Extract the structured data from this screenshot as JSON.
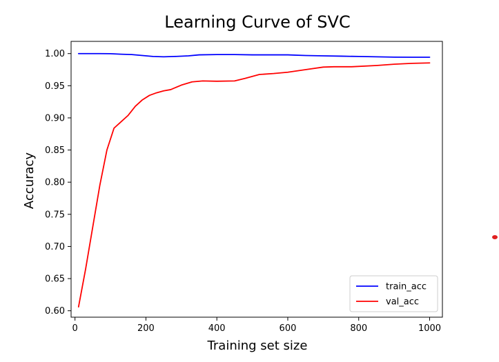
{
  "chart_data": {
    "type": "line",
    "title": "Learning Curve of SVC",
    "xlabel": "Training set size",
    "ylabel": "Accuracy",
    "xlim": [
      -11,
      1036
    ],
    "ylim": [
      0.59,
      1.019
    ],
    "xticks": [
      0,
      200,
      400,
      600,
      800,
      1000
    ],
    "xtick_labels": [
      "0",
      "200",
      "400",
      "600",
      "800",
      "1000"
    ],
    "yticks": [
      0.6,
      0.65,
      0.7,
      0.75,
      0.8,
      0.85,
      0.9,
      0.95,
      1.0
    ],
    "ytick_labels": [
      "0.60",
      "0.65",
      "0.70",
      "0.75",
      "0.80",
      "0.85",
      "0.90",
      "0.95",
      "1.00"
    ],
    "grid": false,
    "legend_position": "lower-right",
    "series": [
      {
        "name": "train_acc",
        "color": "#0000ff",
        "x": [
          10,
          50,
          70,
          100,
          130,
          160,
          190,
          220,
          250,
          280,
          320,
          350,
          400,
          450,
          500,
          550,
          600,
          650,
          700,
          750,
          800,
          850,
          900,
          950,
          1000
        ],
        "y": [
          1.0,
          1.0,
          1.0,
          0.9998,
          0.999,
          0.9985,
          0.997,
          0.9955,
          0.995,
          0.9955,
          0.9965,
          0.998,
          0.9985,
          0.9985,
          0.998,
          0.998,
          0.998,
          0.997,
          0.9965,
          0.996,
          0.9955,
          0.995,
          0.9945,
          0.9943,
          0.9943
        ]
      },
      {
        "name": "val_acc",
        "color": "#ff0000",
        "x": [
          10,
          30,
          50,
          70,
          90,
          110,
          130,
          150,
          170,
          190,
          210,
          230,
          250,
          270,
          300,
          330,
          360,
          400,
          450,
          480,
          520,
          560,
          600,
          650,
          700,
          730,
          780,
          850,
          900,
          950,
          1000
        ],
        "y": [
          0.606,
          0.665,
          0.73,
          0.795,
          0.85,
          0.884,
          0.894,
          0.904,
          0.918,
          0.928,
          0.935,
          0.939,
          0.942,
          0.944,
          0.951,
          0.956,
          0.9575,
          0.957,
          0.9575,
          0.9615,
          0.9675,
          0.969,
          0.971,
          0.975,
          0.979,
          0.9795,
          0.9795,
          0.9815,
          0.9835,
          0.9848,
          0.9855
        ]
      }
    ]
  },
  "extra": {
    "mark_color": "#e02020"
  }
}
